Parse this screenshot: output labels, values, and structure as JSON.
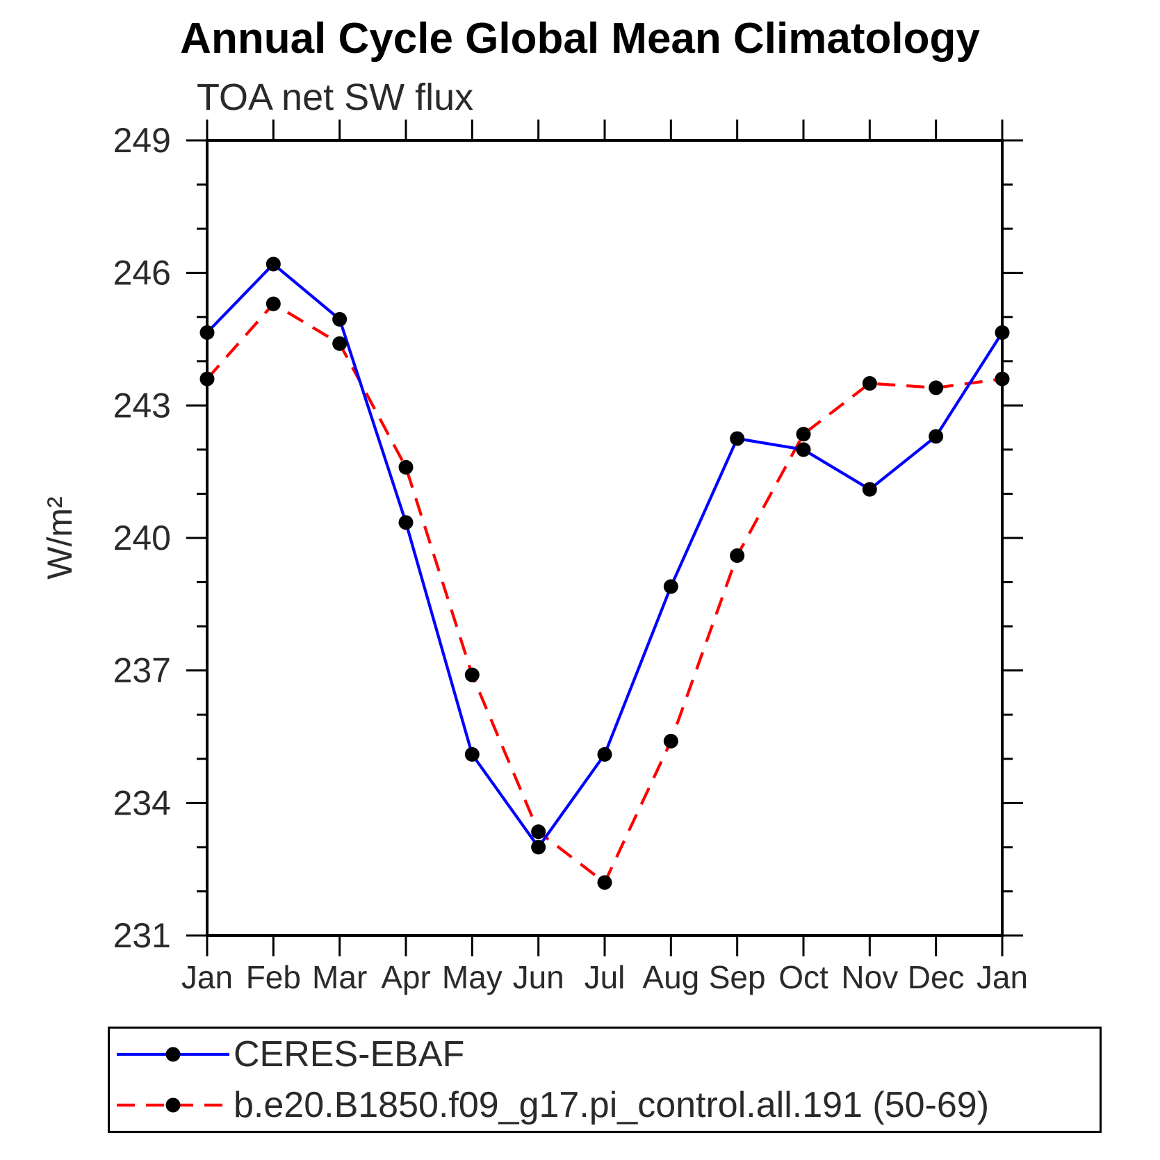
{
  "chart": {
    "title": "Annual Cycle Global Mean Climatology",
    "subtitle": "TOA net SW flux",
    "ylabel": "W/m²"
  },
  "legend": {
    "items": [
      {
        "label": "CERES-EBAF",
        "color": "#0000ff",
        "style": "solid",
        "marker": "black-dot"
      },
      {
        "label": "b.e20.B1850.f09_g17.pi_control.all.191 (50-69)",
        "color": "#ff0000",
        "style": "dashed",
        "marker": "black-dot"
      }
    ]
  },
  "chart_data": {
    "type": "line",
    "title": "Annual Cycle Global Mean Climatology",
    "subtitle": "TOA net SW flux",
    "xlabel": "",
    "ylabel": "W/m²",
    "categories": [
      "Jan",
      "Feb",
      "Mar",
      "Apr",
      "May",
      "Jun",
      "Jul",
      "Aug",
      "Sep",
      "Oct",
      "Nov",
      "Dec",
      "Jan"
    ],
    "series": [
      {
        "name": "CERES-EBAF",
        "color": "#0000ff",
        "line_style": "solid",
        "marker": "circle",
        "marker_color": "#000000",
        "values": [
          244.65,
          246.2,
          244.95,
          240.35,
          235.1,
          233.0,
          235.1,
          238.9,
          242.25,
          242.0,
          241.1,
          242.3,
          244.65
        ]
      },
      {
        "name": "b.e20.B1850.f09_g17.pi_control.all.191 (50-69)",
        "color": "#ff0000",
        "line_style": "dashed",
        "marker": "circle",
        "marker_color": "#000000",
        "values": [
          243.6,
          245.3,
          244.4,
          241.6,
          236.9,
          233.35,
          232.2,
          235.4,
          239.6,
          242.35,
          243.5,
          243.4,
          243.6
        ]
      }
    ],
    "ylim": [
      231,
      249
    ],
    "yticks_major": [
      231,
      234,
      237,
      240,
      243,
      246,
      249
    ],
    "ytick_minor_interval": 1,
    "grid": false,
    "legend_position": "bottom"
  }
}
